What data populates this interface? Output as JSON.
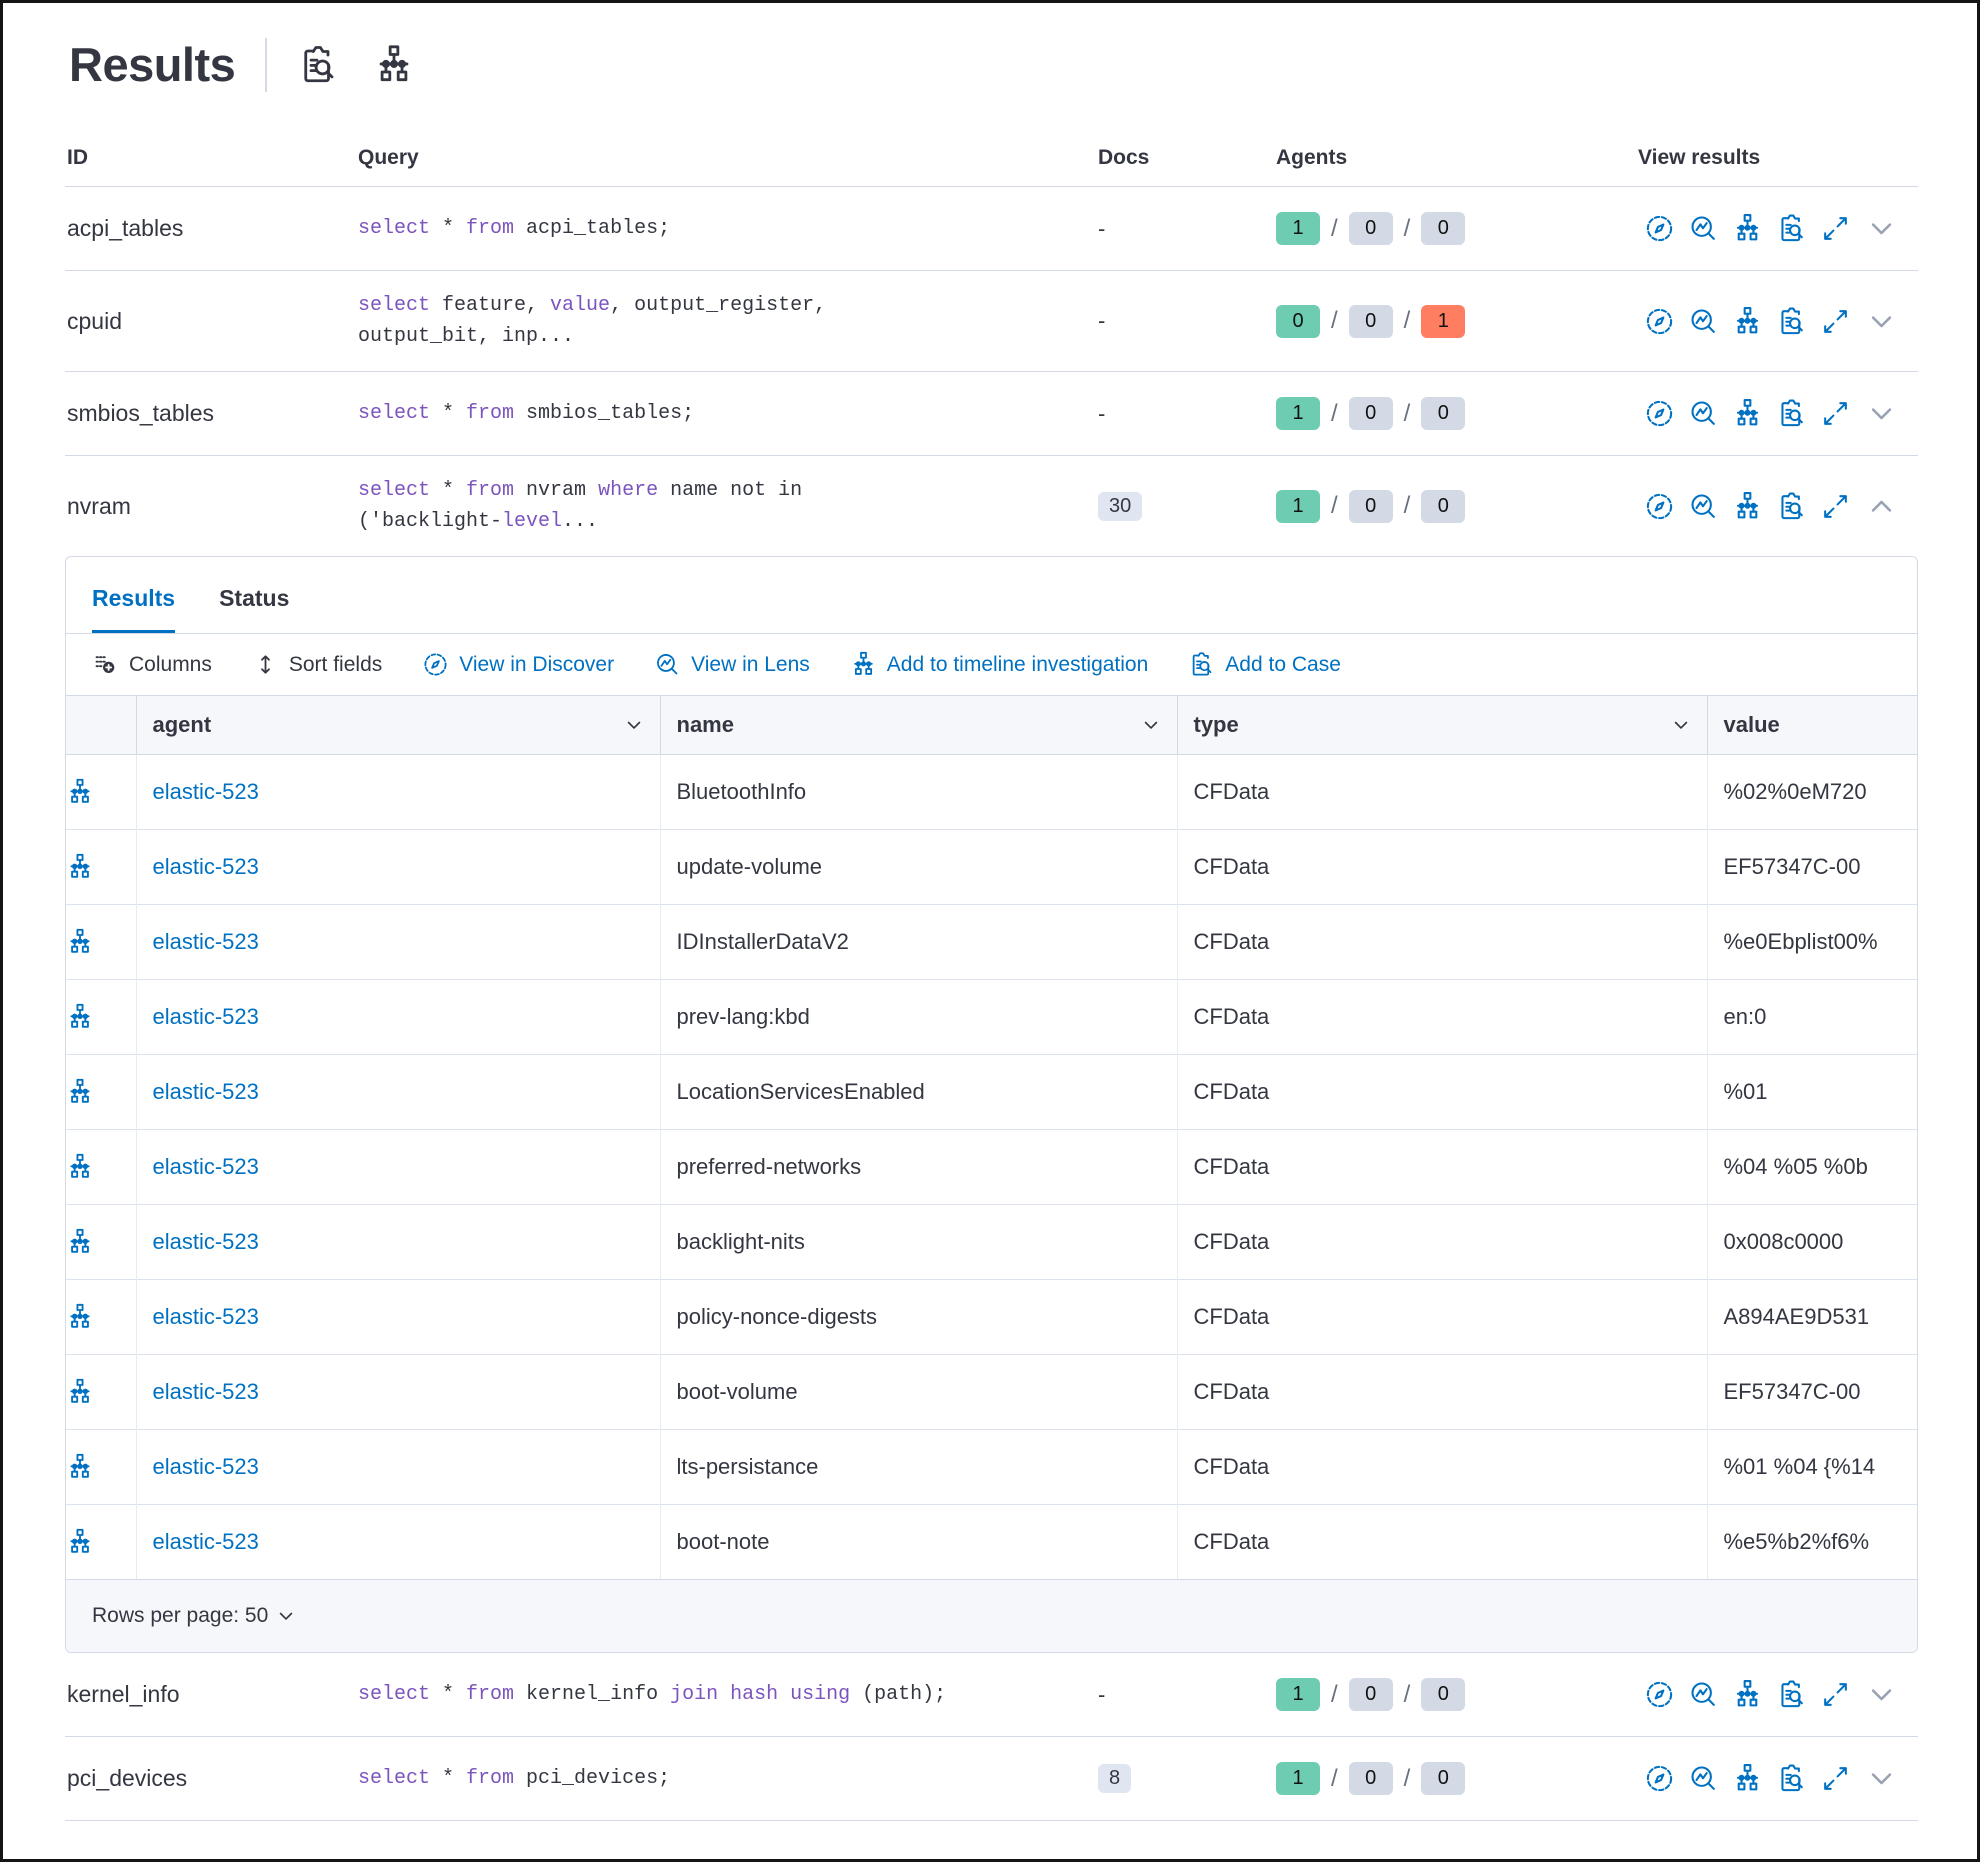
{
  "header": {
    "title": "Results",
    "icons": [
      {
        "name": "inspect-icon"
      },
      {
        "name": "timeline-icon"
      }
    ]
  },
  "columns": {
    "id": "ID",
    "query": "Query",
    "docs": "Docs",
    "agents": "Agents",
    "view_results": "View results"
  },
  "agents_separator": "/",
  "view_results_icons": [
    "discover-icon",
    "lens-icon",
    "timeline-icon",
    "inspect-icon",
    "expand-icon"
  ],
  "rows": [
    {
      "id": "acpi_tables",
      "query_lines": [
        [
          [
            "select",
            true
          ],
          [
            " * ",
            false
          ],
          [
            "from",
            true
          ],
          [
            " acpi_tables;",
            false
          ]
        ]
      ],
      "docs": "-",
      "docs_is_badge": false,
      "agents": [
        {
          "v": "1",
          "c": "success"
        },
        {
          "v": "0",
          "c": "default"
        },
        {
          "v": "0",
          "c": "default"
        }
      ],
      "chevron": "down",
      "expanded": false,
      "border_top": true
    },
    {
      "id": "cpuid",
      "query_lines": [
        [
          [
            "select",
            true
          ],
          [
            " feature, ",
            false
          ],
          [
            "value",
            true
          ],
          [
            ", output_register,",
            false
          ]
        ],
        [
          [
            "output_bit, inp...",
            false
          ]
        ]
      ],
      "docs": "-",
      "docs_is_badge": false,
      "agents": [
        {
          "v": "0",
          "c": "success"
        },
        {
          "v": "0",
          "c": "default"
        },
        {
          "v": "1",
          "c": "danger"
        }
      ],
      "chevron": "down",
      "expanded": false,
      "border_top": true
    },
    {
      "id": "smbios_tables",
      "query_lines": [
        [
          [
            "select",
            true
          ],
          [
            " * ",
            false
          ],
          [
            "from",
            true
          ],
          [
            " smbios_tables;",
            false
          ]
        ]
      ],
      "docs": "-",
      "docs_is_badge": false,
      "agents": [
        {
          "v": "1",
          "c": "success"
        },
        {
          "v": "0",
          "c": "default"
        },
        {
          "v": "0",
          "c": "default"
        }
      ],
      "chevron": "down",
      "expanded": false,
      "border_top": true
    },
    {
      "id": "nvram",
      "query_lines": [
        [
          [
            "select",
            true
          ],
          [
            " * ",
            false
          ],
          [
            "from",
            true
          ],
          [
            " nvram ",
            false
          ],
          [
            "where",
            true
          ],
          [
            " name not in",
            false
          ]
        ],
        [
          [
            "('backlight-",
            false
          ],
          [
            "level",
            true
          ],
          [
            "...",
            false
          ]
        ]
      ],
      "docs": "30",
      "docs_is_badge": true,
      "agents": [
        {
          "v": "1",
          "c": "success"
        },
        {
          "v": "0",
          "c": "default"
        },
        {
          "v": "0",
          "c": "default"
        }
      ],
      "chevron": "up",
      "expanded": true,
      "border_top": true
    },
    {
      "id": "kernel_info",
      "query_lines": [
        [
          [
            "select",
            true
          ],
          [
            " * ",
            false
          ],
          [
            "from",
            true
          ],
          [
            " kernel_info ",
            false
          ],
          [
            "join hash using",
            true
          ],
          [
            " (path);",
            false
          ]
        ]
      ],
      "docs": "-",
      "docs_is_badge": false,
      "agents": [
        {
          "v": "1",
          "c": "success"
        },
        {
          "v": "0",
          "c": "default"
        },
        {
          "v": "0",
          "c": "default"
        }
      ],
      "chevron": "down",
      "expanded": false,
      "border_top": false
    },
    {
      "id": "pci_devices",
      "query_lines": [
        [
          [
            "select",
            true
          ],
          [
            " * ",
            false
          ],
          [
            "from",
            true
          ],
          [
            " pci_devices;",
            false
          ]
        ]
      ],
      "docs": "8",
      "docs_is_badge": true,
      "agents": [
        {
          "v": "1",
          "c": "success"
        },
        {
          "v": "0",
          "c": "default"
        },
        {
          "v": "0",
          "c": "default"
        }
      ],
      "chevron": "down",
      "expanded": false,
      "border_top": true
    }
  ],
  "panel": {
    "tabs": [
      {
        "label": "Results",
        "active": true
      },
      {
        "label": "Status",
        "active": false
      }
    ],
    "toolbar": [
      {
        "label": "Columns",
        "icon": "columns-icon",
        "variant": "default"
      },
      {
        "label": "Sort fields",
        "icon": "sort-icon",
        "variant": "default"
      },
      {
        "label": "View in Discover",
        "icon": "discover-icon",
        "variant": "primary"
      },
      {
        "label": "View in Lens",
        "icon": "lens-icon",
        "variant": "primary"
      },
      {
        "label": "Add to timeline investigation",
        "icon": "timeline-icon",
        "variant": "primary"
      },
      {
        "label": "Add to Case",
        "icon": "inspect-icon",
        "variant": "primary"
      }
    ],
    "grid": {
      "columns": [
        {
          "label": "agent",
          "sortable": true
        },
        {
          "label": "name",
          "sortable": true
        },
        {
          "label": "type",
          "sortable": true
        },
        {
          "label": "value",
          "sortable": false
        }
      ],
      "row_icon": "timeline-icon",
      "rows": [
        {
          "agent": "elastic-523",
          "name": "BluetoothInfo",
          "type": "CFData",
          "value": "%02%0eM720"
        },
        {
          "agent": "elastic-523",
          "name": "update-volume",
          "type": "CFData",
          "value": "EF57347C-00"
        },
        {
          "agent": "elastic-523",
          "name": "IDInstallerDataV2",
          "type": "CFData",
          "value": "%e0Ebplist00%"
        },
        {
          "agent": "elastic-523",
          "name": "prev-lang:kbd",
          "type": "CFData",
          "value": "en:0"
        },
        {
          "agent": "elastic-523",
          "name": "LocationServicesEnabled",
          "type": "CFData",
          "value": "%01"
        },
        {
          "agent": "elastic-523",
          "name": "preferred-networks",
          "type": "CFData",
          "value": "%04 %05 %0b"
        },
        {
          "agent": "elastic-523",
          "name": "backlight-nits",
          "type": "CFData",
          "value": "0x008c0000"
        },
        {
          "agent": "elastic-523",
          "name": "policy-nonce-digests",
          "type": "CFData",
          "value": "A894AE9D531"
        },
        {
          "agent": "elastic-523",
          "name": "boot-volume",
          "type": "CFData",
          "value": "EF57347C-00"
        },
        {
          "agent": "elastic-523",
          "name": "lts-persistance",
          "type": "CFData",
          "value": "%01 %04 {%14"
        },
        {
          "agent": "elastic-523",
          "name": "boot-note",
          "type": "CFData",
          "value": "%e5%b2%f6%"
        }
      ],
      "footer": {
        "rows_per_page": "Rows per page: 50"
      }
    }
  },
  "colors": {
    "primary": "#0071C2",
    "keyword_purple": "#7C54BE",
    "success_badge": "#6DCCB1",
    "danger_badge": "#FF7E62",
    "neutral_badge": "#D3DAE6",
    "docs_badge": "#E0E6F1",
    "text": "#343741",
    "border": "#D3DAE6",
    "header_bg": "#F5F7FB"
  }
}
